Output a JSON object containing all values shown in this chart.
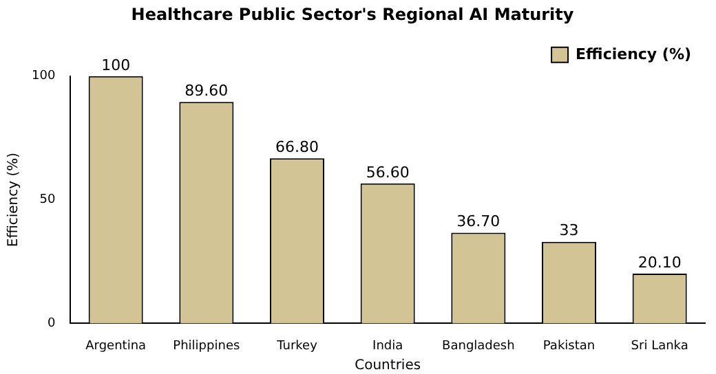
{
  "chart_data": {
    "type": "bar",
    "title": "Healthcare Public Sector's Regional AI Maturity",
    "xlabel": "Countries",
    "ylabel": "Efficiency (%)",
    "categories": [
      "Argentina",
      "Philippines",
      "Turkey",
      "India",
      "Bangladesh",
      "Pakistan",
      "Sri Lanka"
    ],
    "series": [
      {
        "name": "Efficiency (%)",
        "color": "#d2c494",
        "values": [
          100,
          89.6,
          66.8,
          56.6,
          36.7,
          33,
          20.1
        ],
        "value_labels": [
          "100",
          "89.60",
          "66.80",
          "56.60",
          "36.70",
          "33",
          "20.10"
        ]
      }
    ],
    "ylim": [
      0,
      100
    ],
    "yticks": [
      0,
      50,
      100
    ],
    "legend": "top right",
    "grid": false
  }
}
